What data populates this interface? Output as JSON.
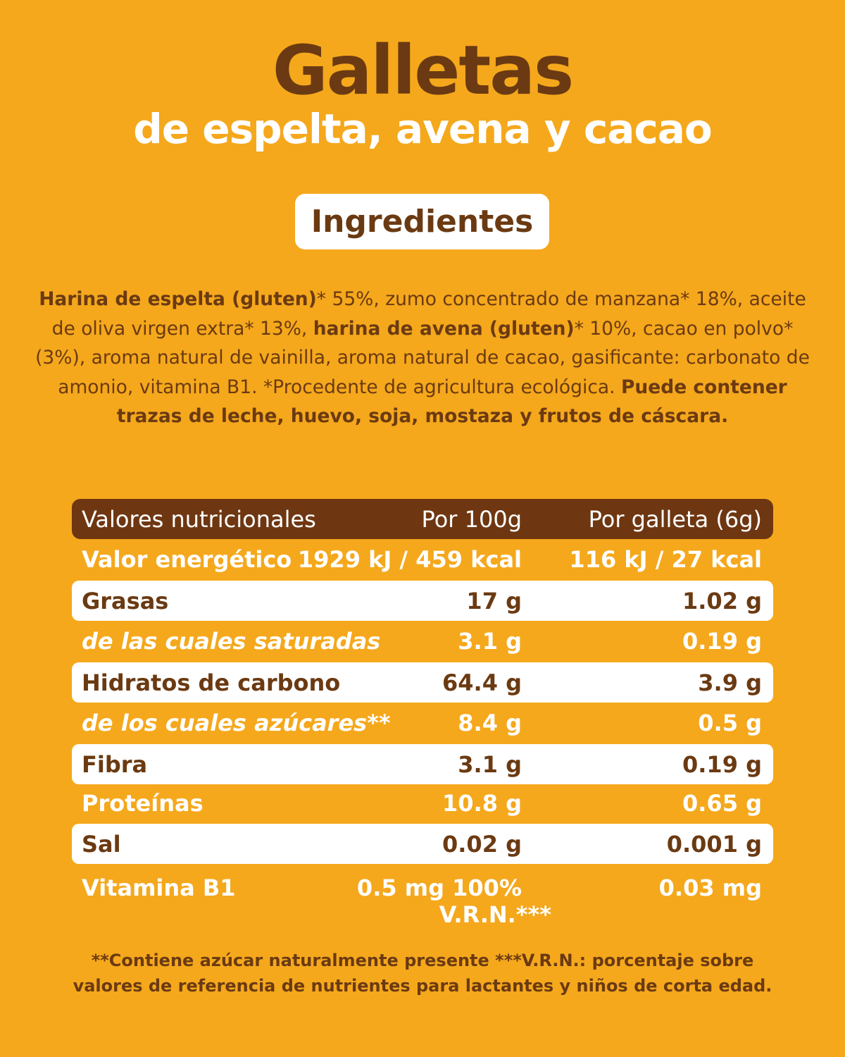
{
  "title": "Galletas",
  "subtitle": "de espelta, avena y cacao",
  "ingredients_heading": "Ingredientes",
  "ingredients": {
    "p1_bold": "Harina de espelta (gluten)",
    "p1": "* 55%, zumo concentrado de manzana* 18%, aceite de oliva virgen extra* 13%, ",
    "p2_bold": "harina de avena (gluten)",
    "p2": "* 10%, cacao en polvo* (3%), aroma natural de vainilla, aroma natural de cacao, gasificante: carbonato de amonio, vitamina B1. *Procedente de agricultura ecológica. ",
    "p3_bold": "Puede contener trazas de leche, huevo, soja, mostaza y frutos de cáscara."
  },
  "table": {
    "header": [
      "Valores nutricionales",
      "Por 100g",
      "Por galleta (6g)"
    ],
    "rows": [
      {
        "label": "Valor energético",
        "per100": "1929 kJ / 459 kcal",
        "perUnit": "116 kJ / 27 kcal"
      },
      {
        "label": "Grasas",
        "per100": "17 g",
        "perUnit": "1.02 g"
      },
      {
        "label": "de las cuales saturadas",
        "per100": "3.1 g",
        "perUnit": "0.19 g"
      },
      {
        "label": "Hidratos de carbono",
        "per100": "64.4 g",
        "perUnit": "3.9 g"
      },
      {
        "label": "de los cuales azúcares**",
        "per100": "8.4 g",
        "perUnit": "0.5 g"
      },
      {
        "label": "Fibra",
        "per100": "3.1 g",
        "perUnit": "0.19 g"
      },
      {
        "label": "Proteínas",
        "per100": "10.8 g",
        "perUnit": "0.65 g"
      },
      {
        "label": "Sal",
        "per100": "0.02 g",
        "perUnit": "0.001 g"
      },
      {
        "label": "Vitamina B1",
        "per100": "0.5 mg 100%",
        "per100_line2": "V.R.N.***",
        "perUnit": "0.03 mg"
      }
    ]
  },
  "footnote": {
    "line1": "**Contiene azúcar naturalmente presente ***V.R.N.: porcentaje sobre",
    "line2": "valores de referencia de nutrientes para lactantes y niños de corta edad."
  },
  "colors": {
    "background": "#F5A81C",
    "brown": "#6B3A12",
    "header_brown": "#6E3712",
    "white": "#FFFFFF"
  }
}
